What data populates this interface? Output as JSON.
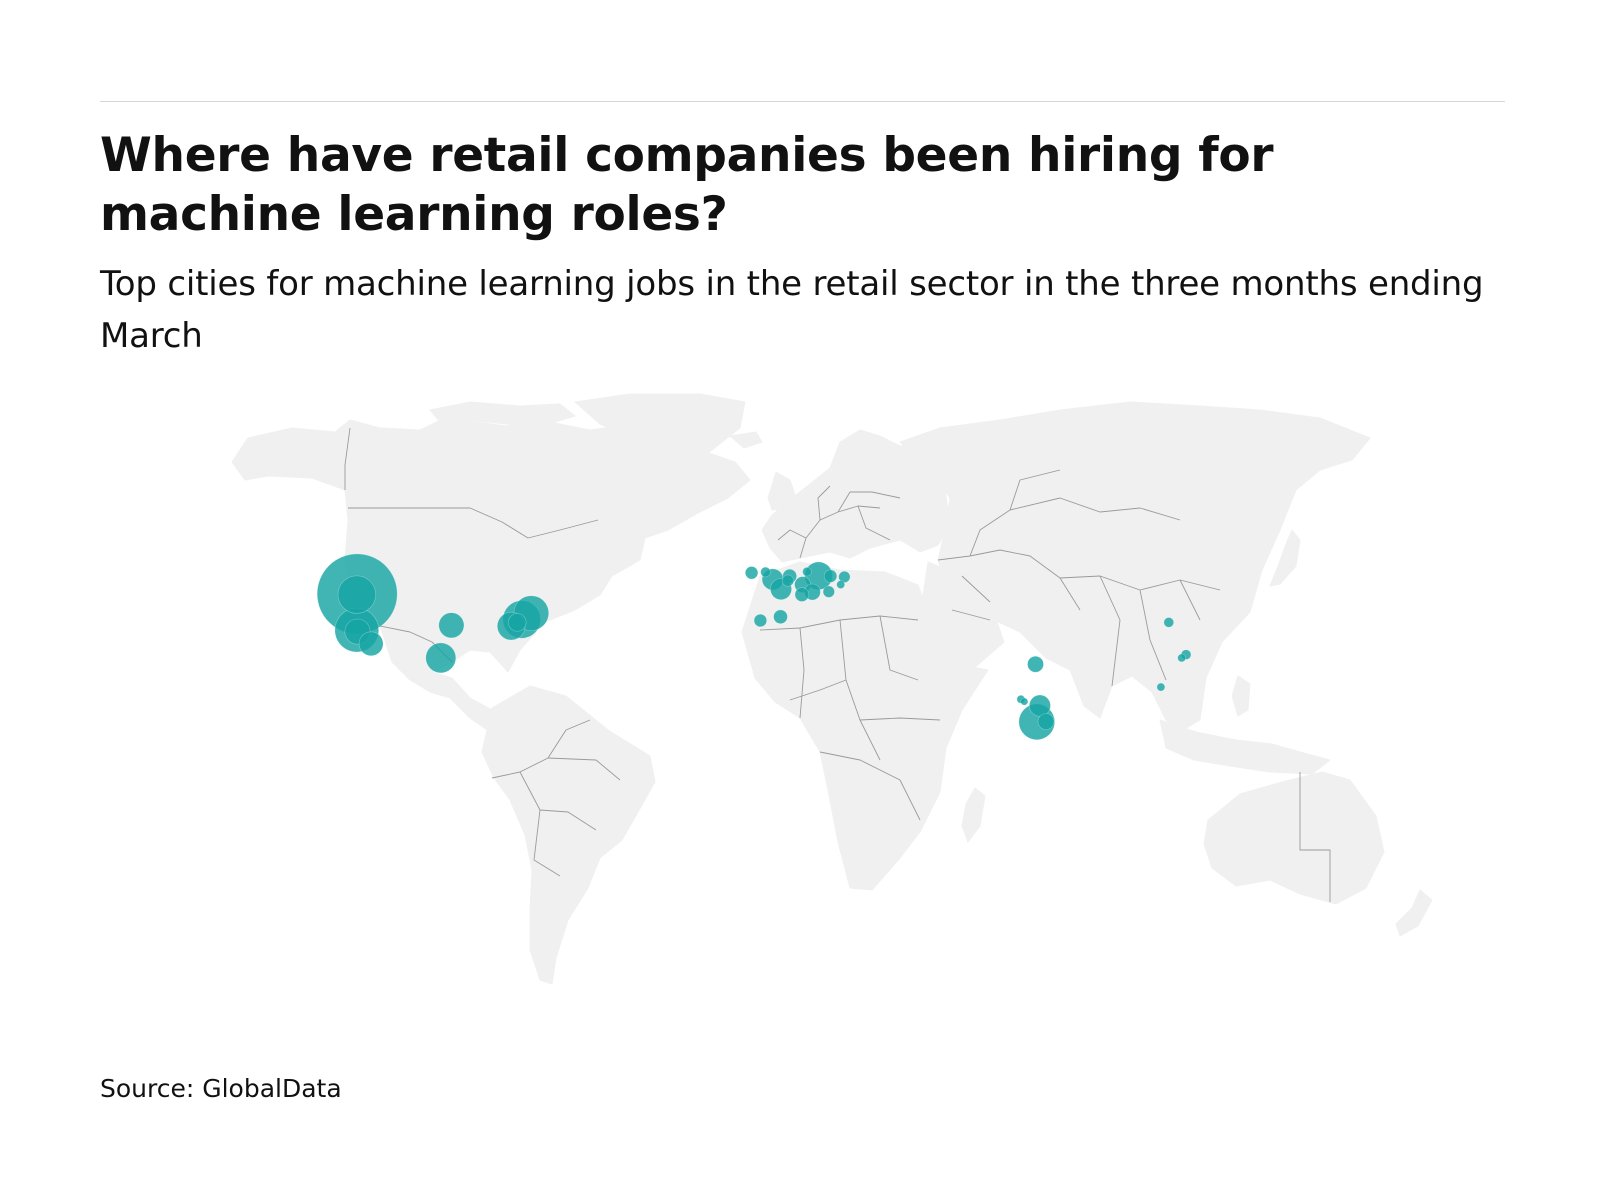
{
  "header": {
    "title": "Where have retail companies been hiring for machine learning roles?",
    "subtitle": "Top cities for machine learning jobs in the retail sector in the three months ending March"
  },
  "footer": {
    "source": "Source: GlobalData"
  },
  "map": {
    "projection": "equirectangular-style world map",
    "land_color": "#f0f0f0",
    "border_color": "#9a9a9a",
    "bubble_color": "#16a5a3",
    "legend": "none"
  },
  "chart_data": {
    "type": "proportional-symbol map",
    "title": "Where have retail companies been hiring for machine learning roles?",
    "subtitle": "Top cities for machine learning jobs in the retail sector in the three months ending March",
    "value_unit": "relative job count (no scale shown)",
    "points": [
      {
        "lon": -122.3,
        "lat": 47.6,
        "value": 100
      },
      {
        "lon": -122.4,
        "lat": 47.4,
        "value": 22
      },
      {
        "lon": -122.4,
        "lat": 37.8,
        "value": 30
      },
      {
        "lon": -122.2,
        "lat": 37.4,
        "value": 10
      },
      {
        "lon": -118.2,
        "lat": 34.1,
        "value": 9
      },
      {
        "lon": -97.7,
        "lat": 30.3,
        "value": 14
      },
      {
        "lon": -94.6,
        "lat": 39.1,
        "value": 10
      },
      {
        "lon": -73.9,
        "lat": 40.7,
        "value": 22
      },
      {
        "lon": -71.1,
        "lat": 42.4,
        "value": 19
      },
      {
        "lon": -77.0,
        "lat": 38.9,
        "value": 12
      },
      {
        "lon": -75.2,
        "lat": 39.9,
        "value": 5
      },
      {
        "lon": -6.3,
        "lat": 53.3,
        "value": 2.5
      },
      {
        "lon": -3.7,
        "lat": 40.4,
        "value": 2.5
      },
      {
        "lon": 2.2,
        "lat": 41.4,
        "value": 3
      },
      {
        "lon": -0.1,
        "lat": 51.5,
        "value": 7
      },
      {
        "lon": -2.2,
        "lat": 53.5,
        "value": 1.5
      },
      {
        "lon": 2.35,
        "lat": 48.9,
        "value": 7
      },
      {
        "lon": 4.9,
        "lat": 52.4,
        "value": 3
      },
      {
        "lon": 4.4,
        "lat": 51.2,
        "value": 2
      },
      {
        "lon": 8.7,
        "lat": 50.1,
        "value": 4
      },
      {
        "lon": 13.4,
        "lat": 52.5,
        "value": 12
      },
      {
        "lon": 11.6,
        "lat": 48.1,
        "value": 4
      },
      {
        "lon": 8.5,
        "lat": 47.4,
        "value": 3
      },
      {
        "lon": 10.0,
        "lat": 53.6,
        "value": 1.2
      },
      {
        "lon": 16.9,
        "lat": 52.4,
        "value": 2.5
      },
      {
        "lon": 21.0,
        "lat": 52.2,
        "value": 2
      },
      {
        "lon": 19.9,
        "lat": 50.1,
        "value": 1
      },
      {
        "lon": 16.4,
        "lat": 48.2,
        "value": 2
      },
      {
        "lon": 77.2,
        "lat": 28.6,
        "value": 4
      },
      {
        "lon": 72.9,
        "lat": 19.1,
        "value": 1
      },
      {
        "lon": 73.9,
        "lat": 18.5,
        "value": 0.8
      },
      {
        "lon": 77.6,
        "lat": 13.0,
        "value": 20
      },
      {
        "lon": 78.5,
        "lat": 17.4,
        "value": 7
      },
      {
        "lon": 80.3,
        "lat": 13.1,
        "value": 4
      },
      {
        "lon": 116.4,
        "lat": 39.9,
        "value": 1.5
      },
      {
        "lon": 121.5,
        "lat": 31.2,
        "value": 1.5
      },
      {
        "lon": 120.2,
        "lat": 30.3,
        "value": 1
      },
      {
        "lon": 114.1,
        "lat": 22.4,
        "value": 1
      }
    ]
  }
}
